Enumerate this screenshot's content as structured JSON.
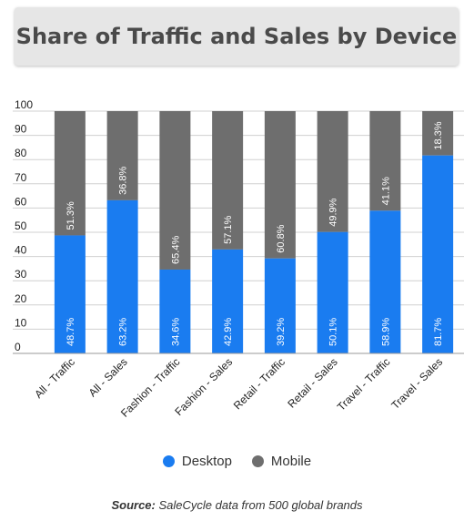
{
  "title": "Share of Traffic and Sales by Device",
  "colors": {
    "desktop": "#1a7cf0",
    "mobile": "#6e6e6e",
    "grid": "#d0d0d0"
  },
  "legend": {
    "desktop": "Desktop",
    "mobile": "Mobile"
  },
  "source": {
    "label": "Source:",
    "text": "SaleCycle data from 500 global brands"
  },
  "chart_data": {
    "type": "bar",
    "stacked": true,
    "categories": [
      "All - Traffic",
      "All - Sales",
      "Fashion - Traffic",
      "Fashion - Sales",
      "Retail - Traffic",
      "Retail - Sales",
      "Travel - Traffic",
      "Travel - Sales"
    ],
    "series": [
      {
        "name": "Desktop",
        "values": [
          48.7,
          63.2,
          34.6,
          42.9,
          39.2,
          50.1,
          58.9,
          81.7
        ],
        "labels": [
          "48.7%",
          "63.2%",
          "34.6%",
          "42.9%",
          "39.2%",
          "50.1%",
          "58.9%",
          "81.7%"
        ]
      },
      {
        "name": "Mobile",
        "values": [
          51.3,
          36.8,
          65.4,
          57.1,
          60.8,
          49.9,
          41.1,
          18.3
        ],
        "labels": [
          "51.3%",
          "36.8%",
          "65.4%",
          "57.1%",
          "60.8%",
          "49.9%",
          "41.1%",
          "18.3%"
        ]
      }
    ],
    "ylim": [
      0,
      100
    ],
    "yticks": [
      "0",
      "10",
      "20",
      "30",
      "40",
      "50",
      "60",
      "70",
      "80",
      "90",
      "100"
    ],
    "grid": true,
    "legend_position": "bottom"
  }
}
